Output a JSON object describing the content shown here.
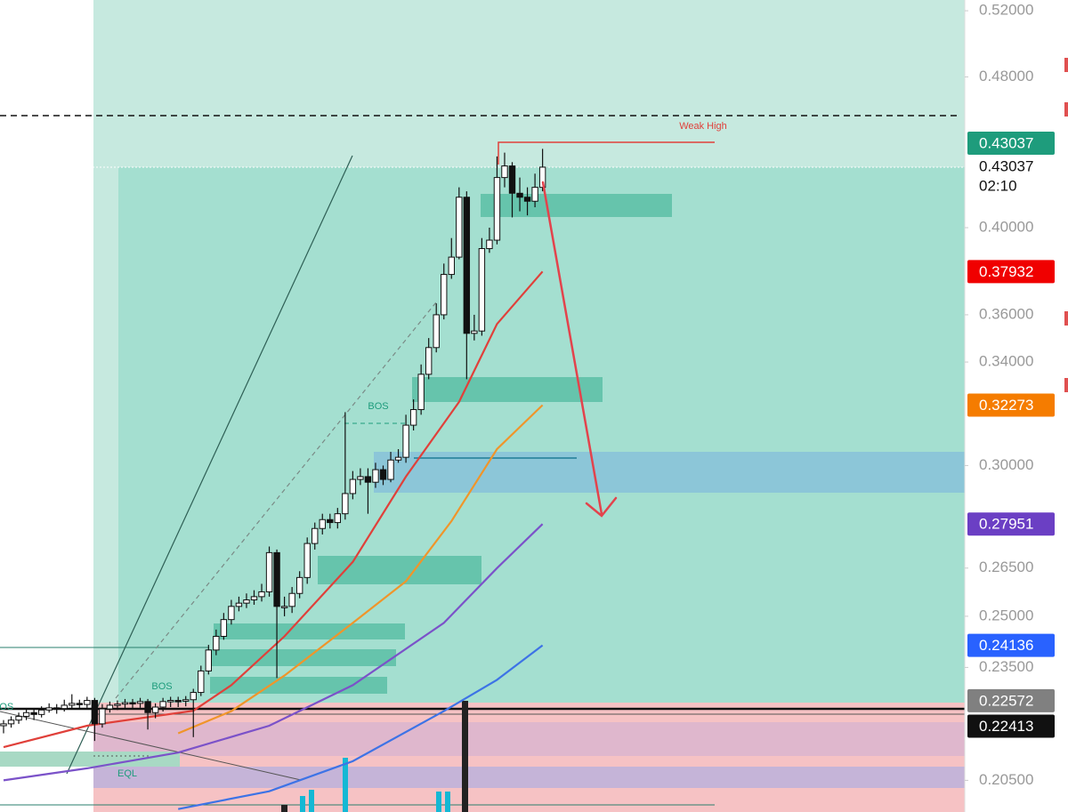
{
  "chart_data": {
    "type": "candlestick",
    "log_scale": true,
    "ylim": [
      0.1973,
      0.5268
    ],
    "yticks": [
      {
        "value": 0.52,
        "label": "0.52000"
      },
      {
        "value": 0.48,
        "label": "0.48000"
      },
      {
        "value": 0.4,
        "label": "0.40000"
      },
      {
        "value": 0.36,
        "label": "0.36000"
      },
      {
        "value": 0.34,
        "label": "0.34000"
      },
      {
        "value": 0.3,
        "label": "0.30000"
      },
      {
        "value": 0.265,
        "label": "0.26500"
      },
      {
        "value": 0.25,
        "label": "0.25000"
      },
      {
        "value": 0.235,
        "label": "0.23500"
      },
      {
        "value": 0.205,
        "label": "0.20500"
      }
    ],
    "bull_color": "#ffffff",
    "bear_color": "#111111",
    "open": [
      0.219,
      0.2195,
      0.2205,
      0.2215,
      0.2225,
      0.222,
      0.2232,
      0.2238,
      0.2236,
      0.2245,
      0.225,
      0.2247,
      0.2258,
      0.2195,
      0.2235,
      0.2245,
      0.2248,
      0.2252,
      0.225,
      0.2255,
      0.2225,
      0.224,
      0.2255,
      0.2258,
      0.2256,
      0.226,
      0.228,
      0.234,
      0.24,
      0.244,
      0.249,
      0.253,
      0.254,
      0.255,
      0.256,
      0.2575,
      0.27,
      0.253,
      0.253,
      0.257,
      0.262,
      0.273,
      0.278,
      0.281,
      0.28,
      0.283,
      0.29,
      0.295,
      0.296,
      0.294,
      0.2985,
      0.295,
      0.302,
      0.303,
      0.315,
      0.321,
      0.335,
      0.346,
      0.36,
      0.378,
      0.386,
      0.415,
      0.352,
      0.353,
      0.39,
      0.394,
      0.425,
      0.431,
      0.417,
      0.415,
      0.413,
      0.42
    ],
    "high": [
      0.2205,
      0.2215,
      0.2225,
      0.2235,
      0.2235,
      0.2242,
      0.225,
      0.2248,
      0.226,
      0.2275,
      0.226,
      0.2268,
      0.2265,
      0.2248,
      0.2255,
      0.2258,
      0.2262,
      0.2262,
      0.2265,
      0.2262,
      0.225,
      0.2265,
      0.2268,
      0.2268,
      0.227,
      0.229,
      0.2355,
      0.2415,
      0.246,
      0.251,
      0.255,
      0.256,
      0.257,
      0.258,
      0.26,
      0.272,
      0.271,
      0.256,
      0.259,
      0.264,
      0.275,
      0.28,
      0.283,
      0.283,
      0.285,
      0.32,
      0.298,
      0.299,
      0.299,
      0.301,
      0.3,
      0.305,
      0.306,
      0.319,
      0.325,
      0.339,
      0.35,
      0.365,
      0.383,
      0.395,
      0.42,
      0.418,
      0.36,
      0.395,
      0.4,
      0.436,
      0.438,
      0.433,
      0.425,
      0.42,
      0.427,
      0.44
    ],
    "low": [
      0.217,
      0.2185,
      0.2195,
      0.2205,
      0.2205,
      0.2212,
      0.2225,
      0.2222,
      0.2228,
      0.2235,
      0.2235,
      0.2238,
      0.215,
      0.2185,
      0.2225,
      0.2232,
      0.2235,
      0.2235,
      0.2238,
      0.218,
      0.221,
      0.2228,
      0.224,
      0.224,
      0.2242,
      0.216,
      0.227,
      0.233,
      0.2385,
      0.243,
      0.2475,
      0.2515,
      0.2525,
      0.2535,
      0.2545,
      0.256,
      0.232,
      0.25,
      0.251,
      0.2555,
      0.26,
      0.271,
      0.276,
      0.278,
      0.278,
      0.281,
      0.288,
      0.293,
      0.283,
      0.292,
      0.293,
      0.294,
      0.301,
      0.301,
      0.313,
      0.319,
      0.333,
      0.344,
      0.358,
      0.376,
      0.385,
      0.333,
      0.349,
      0.351,
      0.388,
      0.392,
      0.42,
      0.405,
      0.408,
      0.406,
      0.41,
      0.418
    ],
    "close": [
      0.2195,
      0.2205,
      0.2215,
      0.2225,
      0.222,
      0.2232,
      0.2238,
      0.2236,
      0.2245,
      0.225,
      0.2247,
      0.2258,
      0.2195,
      0.2235,
      0.2245,
      0.2248,
      0.2252,
      0.225,
      0.2255,
      0.2225,
      0.224,
      0.2255,
      0.2258,
      0.2256,
      0.226,
      0.228,
      0.234,
      0.24,
      0.244,
      0.249,
      0.253,
      0.254,
      0.255,
      0.256,
      0.2575,
      0.27,
      0.253,
      0.253,
      0.257,
      0.262,
      0.273,
      0.278,
      0.281,
      0.28,
      0.283,
      0.29,
      0.295,
      0.296,
      0.294,
      0.2985,
      0.295,
      0.302,
      0.303,
      0.315,
      0.321,
      0.335,
      0.346,
      0.36,
      0.378,
      0.386,
      0.415,
      0.352,
      0.353,
      0.39,
      0.394,
      0.425,
      0.431,
      0.417,
      0.415,
      0.413,
      0.42,
      0.43037
    ],
    "lines": [
      {
        "color": "#e0403a",
        "x": [
          0,
          11,
          25,
          30,
          37,
          46,
          53,
          60,
          65,
          71
        ],
        "values": [
          0.2134,
          0.219,
          0.223,
          0.23,
          0.244,
          0.267,
          0.296,
          0.324,
          0.356,
          0.37932
        ]
      },
      {
        "color": "#f0952a",
        "x": [
          23,
          30,
          37,
          46,
          53,
          59,
          65,
          71
        ],
        "values": [
          0.217,
          0.2229,
          0.2327,
          0.248,
          0.2608,
          0.2805,
          0.306,
          0.32273
        ]
      },
      {
        "color": "#7b52c9",
        "x": [
          0,
          11,
          23,
          35,
          46,
          58,
          65,
          71
        ],
        "values": [
          0.205,
          0.208,
          0.212,
          0.219,
          0.23,
          0.248,
          0.265,
          0.27951
        ]
      },
      {
        "color": "#3d73e6",
        "x": [
          23,
          35,
          46,
          58,
          65,
          71
        ],
        "values": [
          0.198,
          0.2023,
          0.2098,
          0.2229,
          0.2315,
          0.24136
        ]
      }
    ],
    "price_badges": [
      {
        "value": 0.43037,
        "color": "#1e9c7c"
      },
      {
        "value": 0.37932,
        "color": "#f00000"
      },
      {
        "value": 0.32273,
        "color": "#f57c00"
      },
      {
        "value": 0.27951,
        "color": "#6b3fc4"
      },
      {
        "value": 0.24136,
        "color": "#2962ff"
      },
      {
        "value": 0.22572,
        "color": "#808080"
      },
      {
        "value": 0.22413,
        "color": "#111111"
      }
    ],
    "last_price": 0.43037,
    "countdown": "02:10",
    "annotations": [
      {
        "text": "Weak High",
        "color": "#e0403a"
      },
      {
        "text": "BOS",
        "color": "#1e9c7c"
      },
      {
        "text": "BOS",
        "color": "#1e9c7c"
      },
      {
        "text": "EQL",
        "color": "#1e9c7c"
      },
      {
        "text": "BOS",
        "color": "#1e9c7c"
      }
    ]
  }
}
